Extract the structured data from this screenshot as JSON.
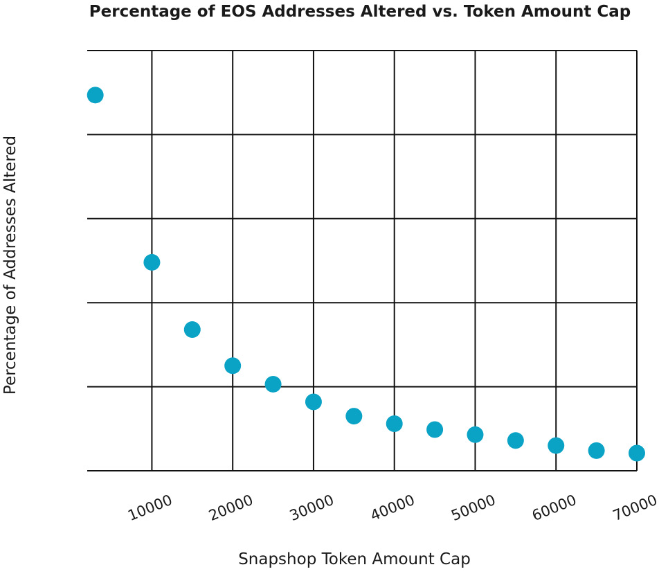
{
  "chart_data": {
    "type": "scatter",
    "title": "Percentage of EOS Addresses Altered vs. Token Amount Cap",
    "xlabel": "Snapshop Token Amount Cap",
    "ylabel": "Percentage of Addresses Altered",
    "xlim": [
      2000,
      70000
    ],
    "ylim": [
      0,
      5
    ],
    "x_ticks": [
      10000,
      20000,
      30000,
      40000,
      50000,
      60000,
      70000
    ],
    "y_grid_count": 5,
    "grid": true,
    "legend": "none",
    "marker_color": "#0aa3c6",
    "grid_color": "#111111",
    "series": [
      {
        "name": "",
        "x": [
          3000,
          10000,
          15000,
          20000,
          25000,
          30000,
          35000,
          40000,
          45000,
          50000,
          55000,
          60000,
          65000,
          70000
        ],
        "y": [
          4.47,
          2.48,
          1.68,
          1.25,
          1.03,
          0.82,
          0.65,
          0.56,
          0.49,
          0.43,
          0.36,
          0.3,
          0.24,
          0.21
        ]
      }
    ]
  }
}
